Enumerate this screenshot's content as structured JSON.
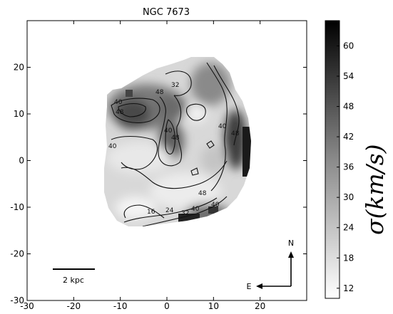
{
  "chart_data": {
    "type": "heatmap",
    "title": "NGC 7673",
    "xlim": [
      -30,
      30
    ],
    "ylim": [
      -30,
      30
    ],
    "x_ticks": [
      -30,
      -20,
      -10,
      0,
      10,
      20
    ],
    "y_ticks": [
      -30,
      -20,
      -10,
      0,
      10,
      20
    ],
    "grid": false,
    "colormap": "gray_r",
    "colorbar": {
      "label": "σ(km/s)",
      "range": [
        10,
        65
      ],
      "ticks": [
        12,
        18,
        24,
        30,
        36,
        42,
        48,
        54,
        60
      ]
    },
    "contour_levels": [
      16,
      24,
      32,
      40,
      48
    ],
    "contour_labels": [
      "48",
      "40",
      "32",
      "48",
      "40",
      "48",
      "40",
      "48",
      "40",
      "48",
      "40",
      "16",
      "24",
      "32",
      "40"
    ],
    "scale_bar": {
      "label": "2 kpc"
    },
    "compass": {
      "north": "N",
      "east": "E"
    }
  }
}
